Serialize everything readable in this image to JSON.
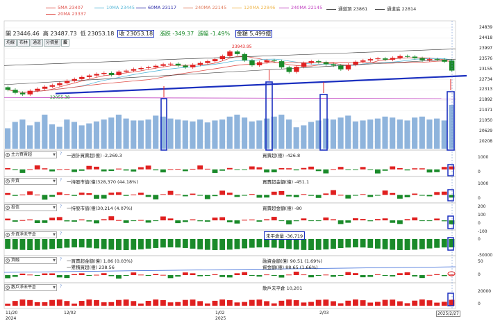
{
  "legend_row1": [
    {
      "label": "5MA 23407",
      "color": "#e0504a"
    },
    {
      "label": "10MA 23445",
      "color": "#58b8d8"
    },
    {
      "label": "60MA 23117",
      "color": "#2a2aa8"
    },
    {
      "label": "240MA 22145",
      "color": "#e07a5a"
    },
    {
      "label": "120MA 22846",
      "color": "#f0b850"
    },
    {
      "label": "240MA 22145",
      "color": "#c040c0"
    },
    {
      "label": "通道頂 23861",
      "color": "#444444"
    },
    {
      "label": "通道底 22814",
      "color": "#444444"
    }
  ],
  "legend_row2": {
    "label": "20MA 23337",
    "color": "#e0504a"
  },
  "info": {
    "open": "開 23446.46",
    "high": "高 23487.73",
    "low": "低 23053.18",
    "close": "收 23053.18",
    "change": "漲跌 -349.37",
    "pct": "漲幅 -1.49%",
    "amount": "金額 5,499億"
  },
  "tabs": [
    "均線",
    "布林",
    "通道",
    "分價量",
    "設"
  ],
  "annotations": {
    "high": "23943.95",
    "low": "22055.38"
  },
  "price_axis": [
    "24839",
    "24418",
    "23997",
    "23576",
    "23155",
    "22734",
    "22313",
    "21892",
    "21471",
    "21050",
    "20629",
    "20208"
  ],
  "panels": {
    "p1": {
      "name": "主力買賣超",
      "left_text": "一週計買賣超(億) -2,269.3",
      "right_text": "買賣超(億) -426.8",
      "ticks": [
        "1000",
        "0"
      ]
    },
    "p2": {
      "name": "外資",
      "left_text": "一持股市值(億)328,370 (44.18%)",
      "right_text": "買賣超金額(億) -451.1",
      "ticks": [
        "1000",
        "0"
      ]
    },
    "p3": {
      "name": "投信",
      "left_text": "一持股市值(億)30,214 (4.07%)",
      "right_text": "買賣超金額(億) -80",
      "ticks": [
        "200",
        "100",
        "0",
        "-100"
      ]
    },
    "p4": {
      "name": "外資淨未平倉",
      "right_text": "未平倉量 -36,719",
      "ticks": [
        "0",
        "-50000"
      ]
    },
    "p5": {
      "name": "資融",
      "left_text1": "一買賣超金額(億) 1.86 (0.03%)",
      "left_text2": "一累積買超(億) 238.56",
      "right_text1": "融資金額(億) 90.51 (1.69%)",
      "right_text2": "資金額(億) 88.65 (1.66%)",
      "ticks": [
        "50",
        "0"
      ]
    },
    "p6": {
      "name": "散戶淨未平倉",
      "right_text": "散戶未平倉 10,201",
      "ticks": [
        "20000",
        "0"
      ]
    }
  },
  "x_axis": [
    {
      "label": "11/20",
      "sub": "2024"
    },
    {
      "label": "12/02",
      "sub": ""
    },
    {
      "label": "1/02",
      "sub": "2025"
    },
    {
      "label": "2/03",
      "sub": ""
    },
    {
      "label": "2025/2/27",
      "sub": ""
    }
  ],
  "colors": {
    "up": "#e02020",
    "down": "#1a8a2a",
    "volume": "#8fb4dc",
    "highlight": "#1a2fbf"
  },
  "chart_data": {
    "type": "candlestick",
    "n": 61,
    "ohlc_close": [
      22300,
      22180,
      22120,
      22260,
      22340,
      22420,
      22480,
      22560,
      22650,
      22720,
      22800,
      22860,
      22920,
      22960,
      22880,
      23010,
      23050,
      23110,
      23150,
      23180,
      23240,
      23300,
      23320,
      23250,
      23180,
      23280,
      23350,
      23420,
      23500,
      23620,
      23800,
      23700,
      23450,
      23260,
      23380,
      23450,
      23420,
      23180,
      23000,
      23200,
      23350,
      23420,
      23380,
      23300,
      23250,
      23100,
      23280,
      23400,
      23450,
      23500,
      23530,
      23480,
      23550,
      23620,
      23600,
      23540,
      23460,
      23500,
      23480,
      23400,
      23053
    ],
    "ohlc_open": [
      22400,
      22300,
      22180,
      22120,
      22260,
      22340,
      22420,
      22480,
      22560,
      22650,
      22720,
      22800,
      22860,
      22920,
      22960,
      22880,
      23010,
      23050,
      23110,
      23150,
      23180,
      23240,
      23300,
      23320,
      23250,
      23180,
      23280,
      23350,
      23420,
      23500,
      23620,
      23800,
      23700,
      23450,
      23260,
      23380,
      23450,
      23420,
      23180,
      23000,
      23200,
      23350,
      23420,
      23380,
      23300,
      23250,
      23100,
      23280,
      23400,
      23450,
      23500,
      23530,
      23480,
      23550,
      23620,
      23600,
      23540,
      23460,
      23500,
      23480,
      23446
    ],
    "volume_relative": [
      0.42,
      0.55,
      0.6,
      0.48,
      0.55,
      0.7,
      0.5,
      0.45,
      0.6,
      0.55,
      0.48,
      0.52,
      0.56,
      0.6,
      0.64,
      0.7,
      0.62,
      0.58,
      0.58,
      0.6,
      0.68,
      0.66,
      0.62,
      0.6,
      0.58,
      0.56,
      0.6,
      0.54,
      0.58,
      0.6,
      0.66,
      0.7,
      0.64,
      0.56,
      0.58,
      0.62,
      0.66,
      0.7,
      0.6,
      0.44,
      0.48,
      0.55,
      0.58,
      0.62,
      0.6,
      0.64,
      0.68,
      0.56,
      0.58,
      0.6,
      0.62,
      0.66,
      0.64,
      0.6,
      0.58,
      0.64,
      0.66,
      0.6,
      0.62,
      0.58,
      0.9
    ],
    "ylim": [
      20208,
      24839
    ]
  }
}
